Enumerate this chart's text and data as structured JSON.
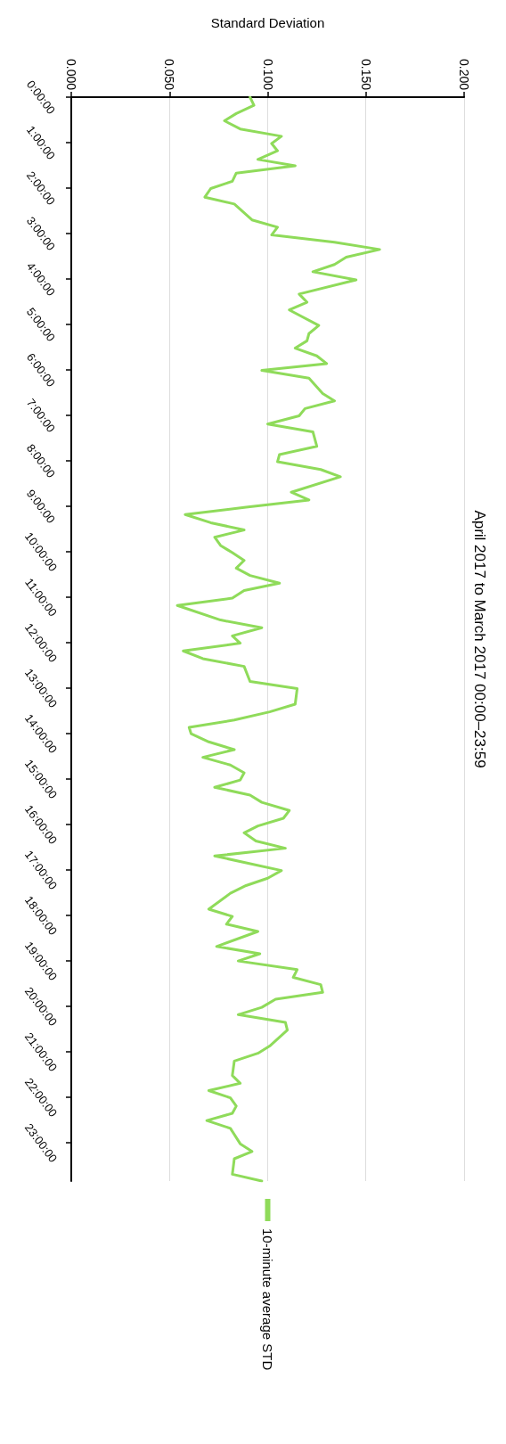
{
  "chart_data": {
    "type": "line",
    "title": "April 2017 to March 2017 00:00–23:59",
    "xlabel": "Standard Deviation",
    "ylim": [
      23.84,
      0
    ],
    "yticks": [
      {
        "value": 0,
        "label": "0:00:00"
      },
      {
        "value": 1,
        "label": "1:00:00"
      },
      {
        "value": 2,
        "label": "2:00:00"
      },
      {
        "value": 3,
        "label": "3:00:00"
      },
      {
        "value": 4,
        "label": "4:00:00"
      },
      {
        "value": 5,
        "label": "5:00:00"
      },
      {
        "value": 6,
        "label": "6:00:00"
      },
      {
        "value": 7,
        "label": "7:00:00"
      },
      {
        "value": 8,
        "label": "8:00:00"
      },
      {
        "value": 9,
        "label": "9:00:00"
      },
      {
        "value": 10,
        "label": "10:00:00"
      },
      {
        "value": 11,
        "label": "11:00:00"
      },
      {
        "value": 12,
        "label": "12:00:00"
      },
      {
        "value": 13,
        "label": "13:00:00"
      },
      {
        "value": 14,
        "label": "14:00:00"
      },
      {
        "value": 15,
        "label": "15:00:00"
      },
      {
        "value": 16,
        "label": "16:00:00"
      },
      {
        "value": 17,
        "label": "17:00:00"
      },
      {
        "value": 18,
        "label": "18:00:00"
      },
      {
        "value": 19,
        "label": "19:00:00"
      },
      {
        "value": 20,
        "label": "20:00:00"
      },
      {
        "value": 21,
        "label": "21:00:00"
      },
      {
        "value": 22,
        "label": "22:00:00"
      },
      {
        "value": 23,
        "label": "23:00:00"
      }
    ],
    "xlim": [
      0,
      0.2
    ],
    "xticks": [
      {
        "value": 0,
        "label": "0.000"
      },
      {
        "value": 0.05,
        "label": "0.050"
      },
      {
        "value": 0.1,
        "label": "0.100"
      },
      {
        "value": 0.15,
        "label": "0.150"
      },
      {
        "value": 0.2,
        "label": "0.200"
      }
    ],
    "grid": "x",
    "legend": "bottom",
    "marker": "none",
    "line_style": "solid",
    "series": [
      {
        "name": "10-minute average STD",
        "color": "#8fdb5a",
        "values": [
          0,
          0.18,
          0.36,
          0.52,
          0.7,
          0.86,
          1.02,
          1.18,
          1.37,
          1.51,
          1.67,
          1.85,
          2.01,
          2.2,
          2.35,
          2.7,
          2.86,
          3.03,
          3.19,
          3.35,
          3.52,
          3.68,
          3.84,
          4.02,
          4.33,
          4.51,
          4.68,
          5.02,
          5.2,
          5.36,
          5.52,
          5.69,
          5.86,
          6.01,
          6.18,
          6.52,
          6.68,
          6.85,
          7.01,
          7.19,
          7.36,
          7.68,
          7.86,
          8.02,
          8.19,
          8.35,
          8.69,
          8.86,
          9.02,
          9.18,
          9.36,
          9.52,
          9.68,
          9.86,
          10.02,
          10.19,
          10.36,
          10.52,
          10.69,
          10.85,
          11.02,
          11.18,
          11.5,
          11.67,
          11.85,
          12.01,
          12.18,
          12.35,
          12.52,
          12.85,
          13.01,
          13.35,
          13.52,
          13.7,
          13.86,
          14,
          14.18,
          14.35,
          14.52,
          14.69,
          14.86,
          15.02,
          15.18,
          15.35,
          15.51,
          15.69,
          15.86,
          16.03,
          16.18,
          16.36,
          16.52,
          16.69,
          17.01,
          17.18,
          17.34,
          17.51,
          17.86,
          18.02,
          18.19,
          18.35,
          18.68,
          18.84,
          19,
          19.19,
          19.36,
          19.52,
          19.69,
          19.84,
          20.02,
          20.18,
          20.35,
          20.52,
          20.87,
          21.03,
          21.2,
          21.52,
          21.69,
          21.85,
          22.01,
          22.19,
          22.35,
          22.51,
          22.68,
          23.02,
          23.19,
          23.35,
          23.69,
          23.84
        ],
        "x": [
          0.091,
          0.093,
          0.084,
          0.078,
          0.086,
          0.107,
          0.102,
          0.105,
          0.095,
          0.114,
          0.084,
          0.082,
          0.071,
          0.068,
          0.083,
          0.092,
          0.105,
          0.102,
          0.134,
          0.157,
          0.14,
          0.134,
          0.123,
          0.145,
          0.116,
          0.12,
          0.111,
          0.126,
          0.121,
          0.12,
          0.114,
          0.125,
          0.13,
          0.097,
          0.121,
          0.128,
          0.134,
          0.119,
          0.116,
          0.1,
          0.123,
          0.125,
          0.106,
          0.105,
          0.127,
          0.137,
          0.112,
          0.121,
          0.089,
          0.058,
          0.071,
          0.088,
          0.073,
          0.076,
          0.082,
          0.088,
          0.084,
          0.091,
          0.106,
          0.088,
          0.082,
          0.054,
          0.076,
          0.097,
          0.082,
          0.086,
          0.057,
          0.067,
          0.088,
          0.091,
          0.115,
          0.114,
          0.101,
          0.083,
          0.06,
          0.061,
          0.07,
          0.083,
          0.067,
          0.081,
          0.088,
          0.086,
          0.073,
          0.091,
          0.097,
          0.111,
          0.108,
          0.095,
          0.088,
          0.094,
          0.109,
          0.073,
          0.107,
          0.1,
          0.089,
          0.081,
          0.07,
          0.082,
          0.079,
          0.095,
          0.074,
          0.096,
          0.085,
          0.115,
          0.113,
          0.127,
          0.128,
          0.104,
          0.097,
          0.085,
          0.109,
          0.11,
          0.101,
          0.095,
          0.083,
          0.082,
          0.086,
          0.07,
          0.081,
          0.084,
          0.082,
          0.069,
          0.081,
          0.086,
          0.092,
          0.083,
          0.082,
          0.097
        ]
      }
    ]
  }
}
